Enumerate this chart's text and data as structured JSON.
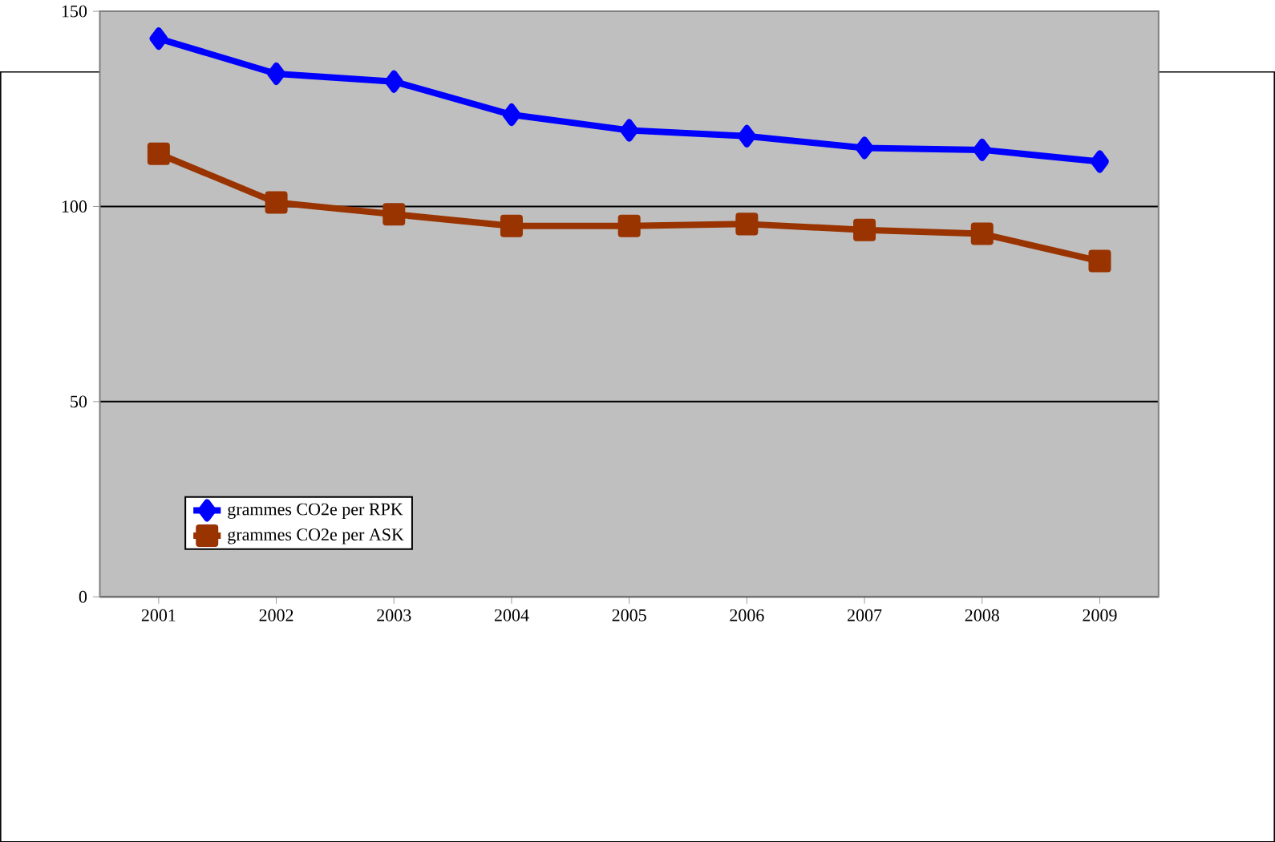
{
  "chart_data": {
    "type": "line",
    "categories": [
      "2001",
      "2002",
      "2003",
      "2004",
      "2005",
      "2006",
      "2007",
      "2008",
      "2009"
    ],
    "series": [
      {
        "name": "grammes CO2e per RPK",
        "color": "#0000ff",
        "marker": "diamond",
        "values": [
          143,
          134,
          132,
          123.5,
          119.5,
          118,
          115,
          114.5,
          111.5
        ]
      },
      {
        "name": "grammes CO2e per ASK",
        "color": "#993300",
        "marker": "square",
        "values": [
          113.5,
          101,
          98,
          95,
          95,
          95.5,
          94,
          93,
          86
        ]
      }
    ],
    "ylim": [
      0,
      150
    ],
    "yticks": [
      0,
      50,
      100,
      150
    ],
    "grid": "y",
    "legend": "bottom left"
  }
}
